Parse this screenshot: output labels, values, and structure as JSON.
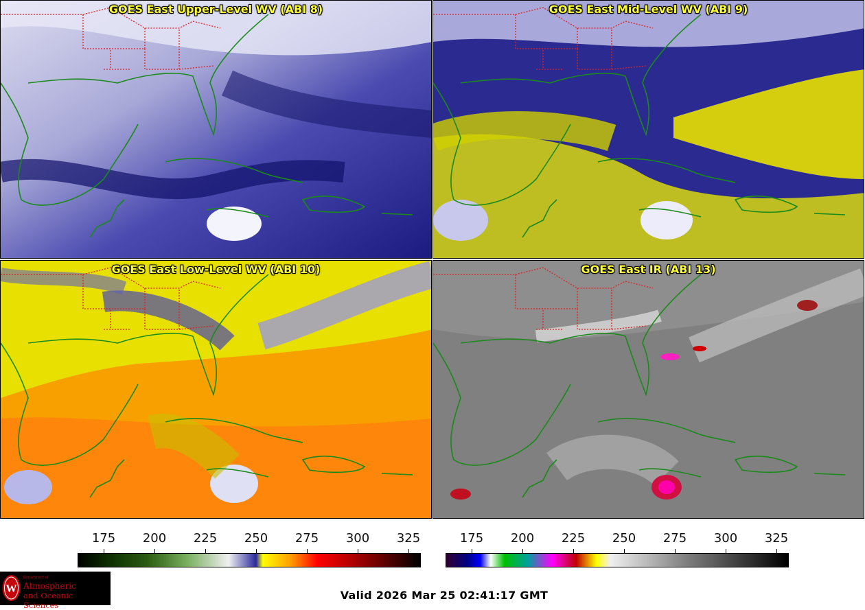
{
  "panels": [
    {
      "id": "p1",
      "title": "GOES East Upper-Level WV (ABI 8)",
      "scheme": "wv_upper"
    },
    {
      "id": "p2",
      "title": "GOES East Mid-Level WV (ABI 9)",
      "scheme": "wv_mid"
    },
    {
      "id": "p3",
      "title": "GOES East Low-Level WV (ABI 10)",
      "scheme": "wv_low"
    },
    {
      "id": "p4",
      "title": "GOES East IR (ABI 13)",
      "scheme": "ir"
    }
  ],
  "colorbars": {
    "wv": {
      "ticks": [
        "175",
        "200",
        "225",
        "250",
        "275",
        "300",
        "325"
      ]
    },
    "ir": {
      "ticks": [
        "175",
        "200",
        "225",
        "250",
        "275",
        "300",
        "325"
      ]
    }
  },
  "valid_time": "Valid 2026 Mar 25 02:41:17 GMT",
  "logo": {
    "dept": "Department of",
    "line1": "Atmospheric",
    "line2": "and Oceanic Sciences"
  },
  "colors": {
    "coast": "#1a8a1a",
    "state_border": "#dd2222",
    "title": "#ffff33"
  }
}
